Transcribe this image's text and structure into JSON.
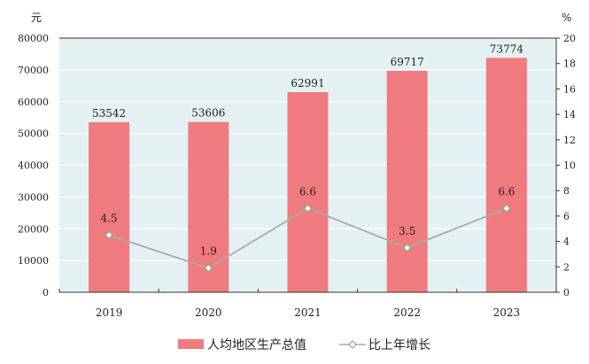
{
  "chart_data": {
    "type": "bar",
    "categories": [
      "2019",
      "2020",
      "2021",
      "2022",
      "2023"
    ],
    "series": [
      {
        "name": "人均地区生产总值",
        "type": "bar",
        "axis": "left",
        "values": [
          53542,
          53606,
          62991,
          69717,
          73774
        ]
      },
      {
        "name": "比上年增长",
        "type": "line",
        "axis": "right",
        "values": [
          4.5,
          1.9,
          6.6,
          3.5,
          6.6
        ]
      }
    ],
    "left_axis": {
      "label": "元",
      "range": [
        0,
        80000
      ],
      "ticks": [
        0,
        10000,
        20000,
        30000,
        40000,
        50000,
        60000,
        70000,
        80000
      ]
    },
    "right_axis": {
      "label": "%",
      "range": [
        0,
        20
      ],
      "ticks": [
        0,
        2,
        4,
        6,
        8,
        10,
        12,
        14,
        16,
        18,
        20
      ]
    },
    "grid": true,
    "legend": "bottom",
    "colors": {
      "bar": "#f07b7f",
      "line": "#a9aaa9",
      "marker": "#7fae8f",
      "plot_bg": "#e3f1f2"
    }
  }
}
